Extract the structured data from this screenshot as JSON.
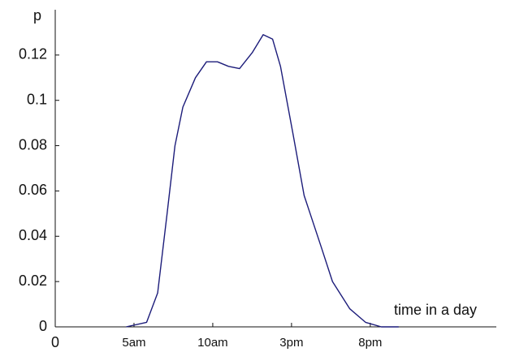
{
  "chart_data": {
    "type": "line",
    "x_label": "time in a day",
    "y_label": "p",
    "x": [
      4.5,
      5.8,
      6.5,
      7.1,
      7.6,
      8.1,
      8.9,
      9.6,
      10.3,
      11.0,
      11.7,
      12.5,
      13.2,
      13.8,
      14.3,
      15.1,
      15.8,
      16.9,
      17.6,
      18.7,
      19.7,
      20.7,
      21.8
    ],
    "series": [
      {
        "name": "p",
        "color": "#1c1c7a",
        "values": [
          0,
          0.002,
          0.015,
          0.05,
          0.08,
          0.097,
          0.11,
          0.117,
          0.117,
          0.115,
          0.114,
          0.121,
          0.129,
          0.127,
          0.115,
          0.085,
          0.058,
          0.035,
          0.02,
          0.008,
          0.002,
          0,
          0
        ]
      }
    ],
    "xlim": [
      0,
      28
    ],
    "xticks": [
      0,
      {
        "value": 5,
        "label": "5am"
      },
      {
        "value": 10,
        "label": "10am"
      },
      {
        "value": 15,
        "label": "3pm"
      },
      {
        "value": 20,
        "label": "8pm"
      }
    ],
    "ylim": [
      0,
      0.14
    ],
    "yticks": [
      0,
      0.02,
      0.04,
      0.06,
      0.08,
      0.1,
      0.12
    ]
  }
}
